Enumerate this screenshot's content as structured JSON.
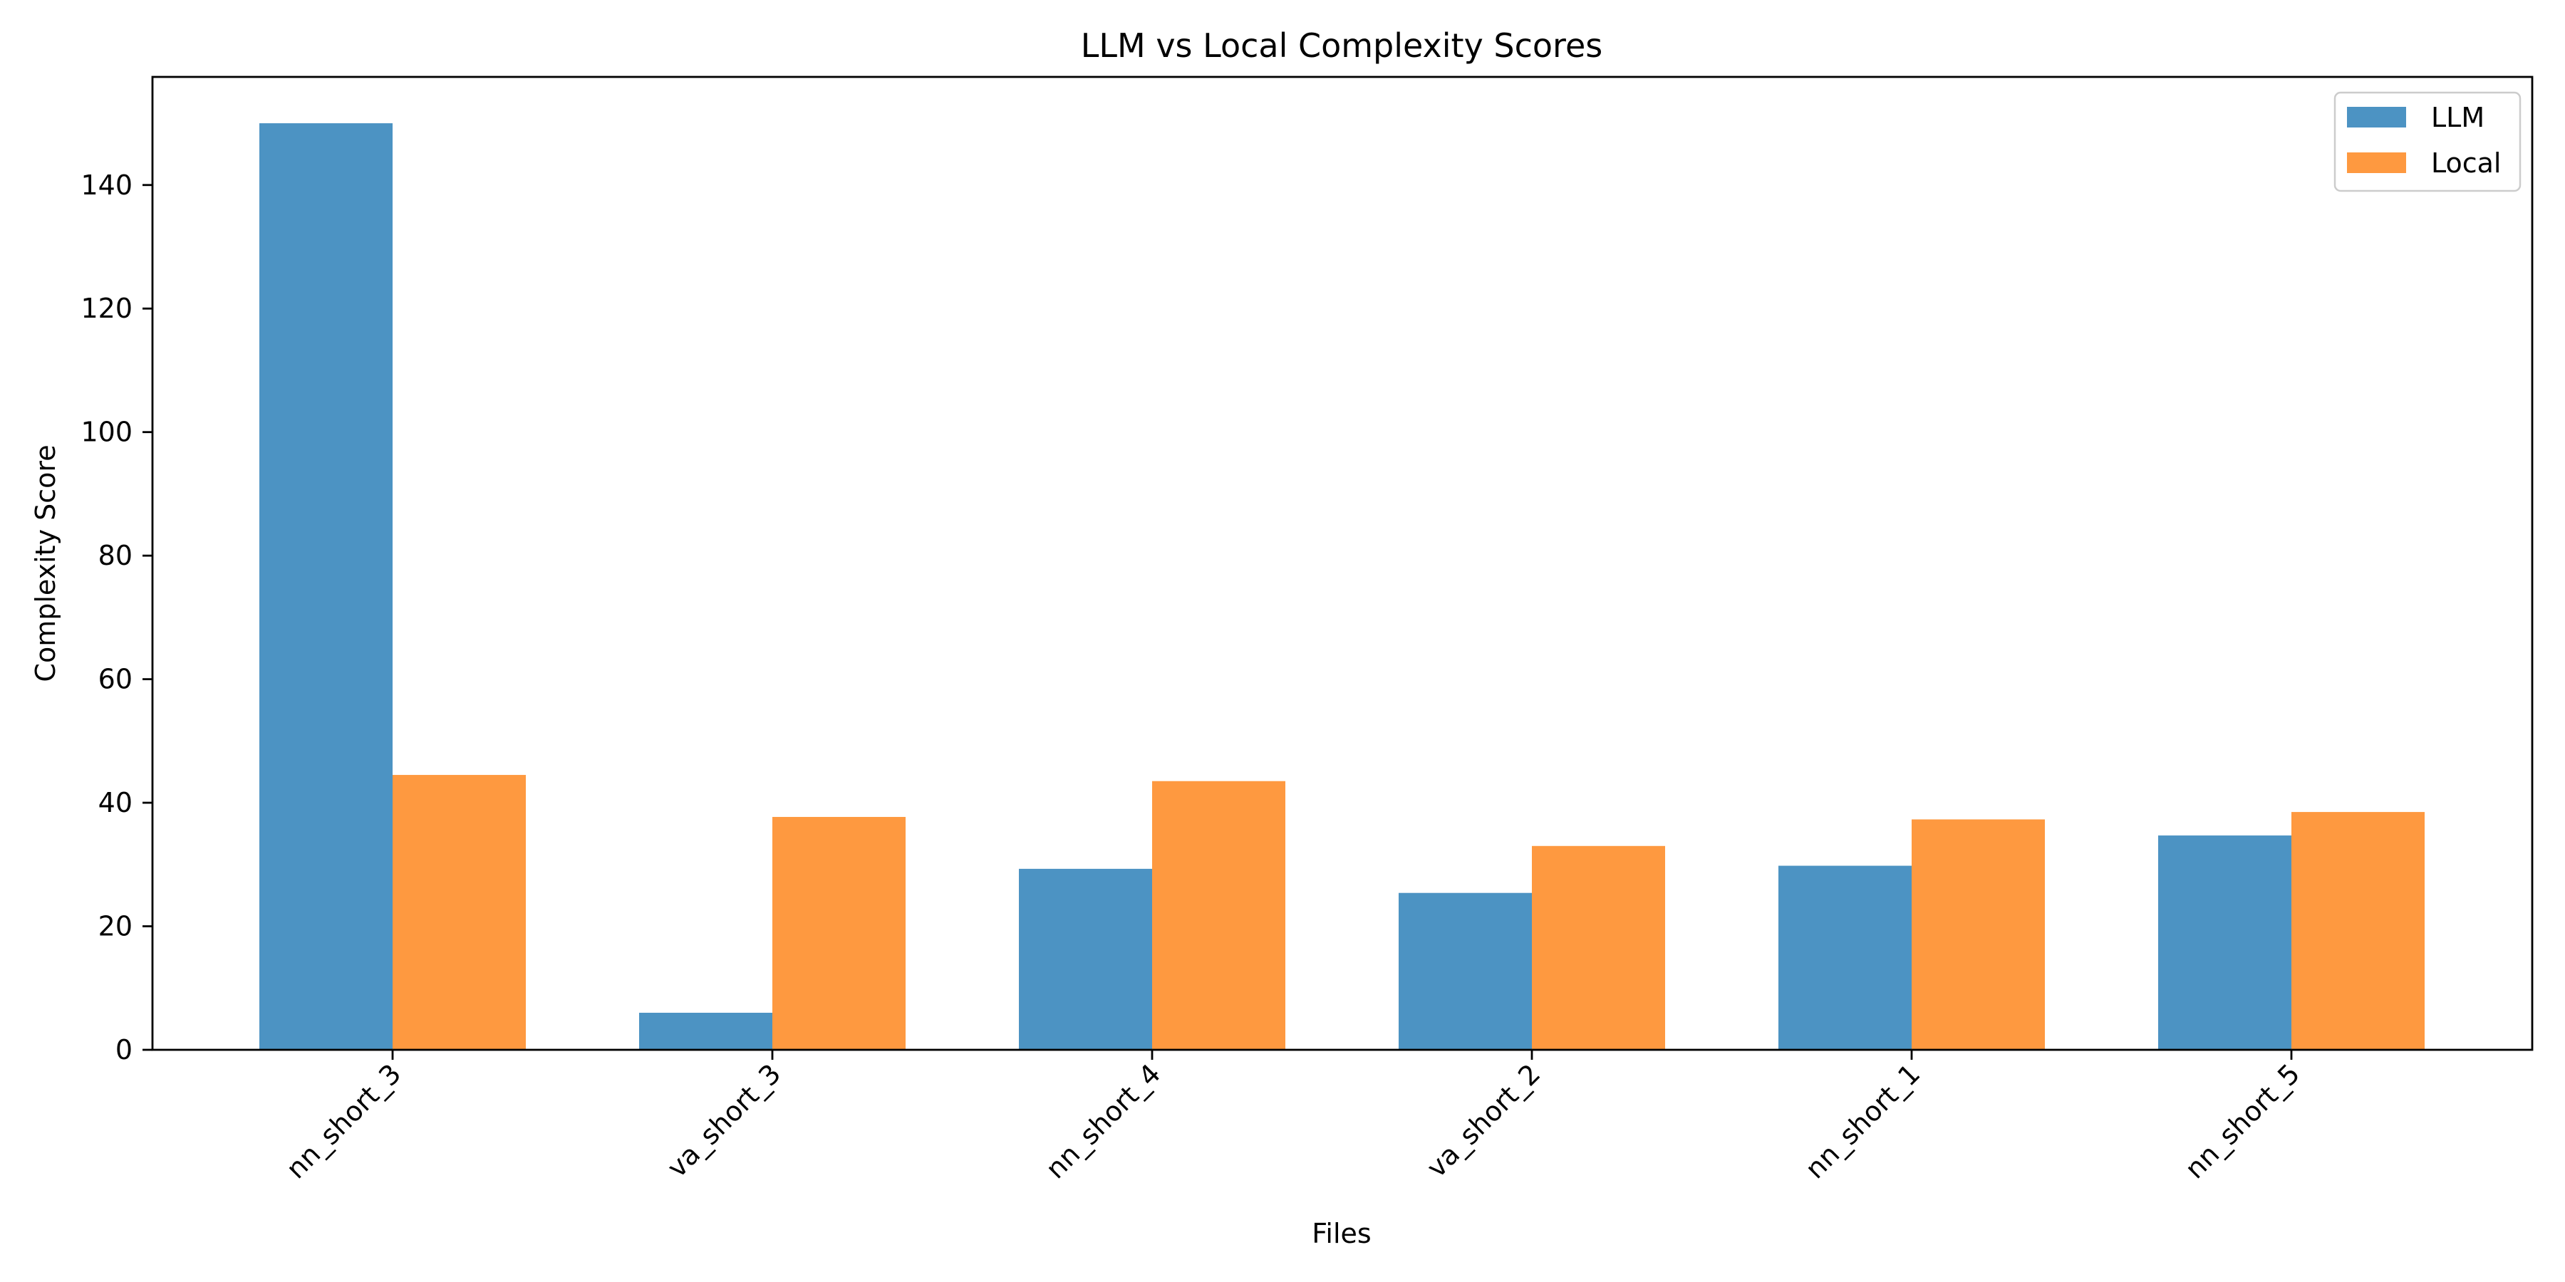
{
  "chart_data": {
    "type": "bar",
    "title": "LLM vs Local Complexity Scores",
    "xlabel": "Files",
    "ylabel": "Complexity Score",
    "categories": [
      "nn_short_3",
      "va_short_3",
      "nn_short_4",
      "va_short_2",
      "nn_short_1",
      "nn_short_5"
    ],
    "series": [
      {
        "name": "LLM",
        "color": "#4c93c3",
        "values": [
          150,
          6,
          29.3,
          25.4,
          29.8,
          34.7
        ]
      },
      {
        "name": "Local",
        "color": "#fe9940",
        "values": [
          44.5,
          37.7,
          43.5,
          33,
          37.3,
          38.5
        ]
      }
    ],
    "ylim": [
      0,
      157.5
    ],
    "yticks": [
      0,
      20,
      40,
      60,
      80,
      100,
      120,
      140
    ],
    "grid": false,
    "legend_position": "top-right"
  }
}
